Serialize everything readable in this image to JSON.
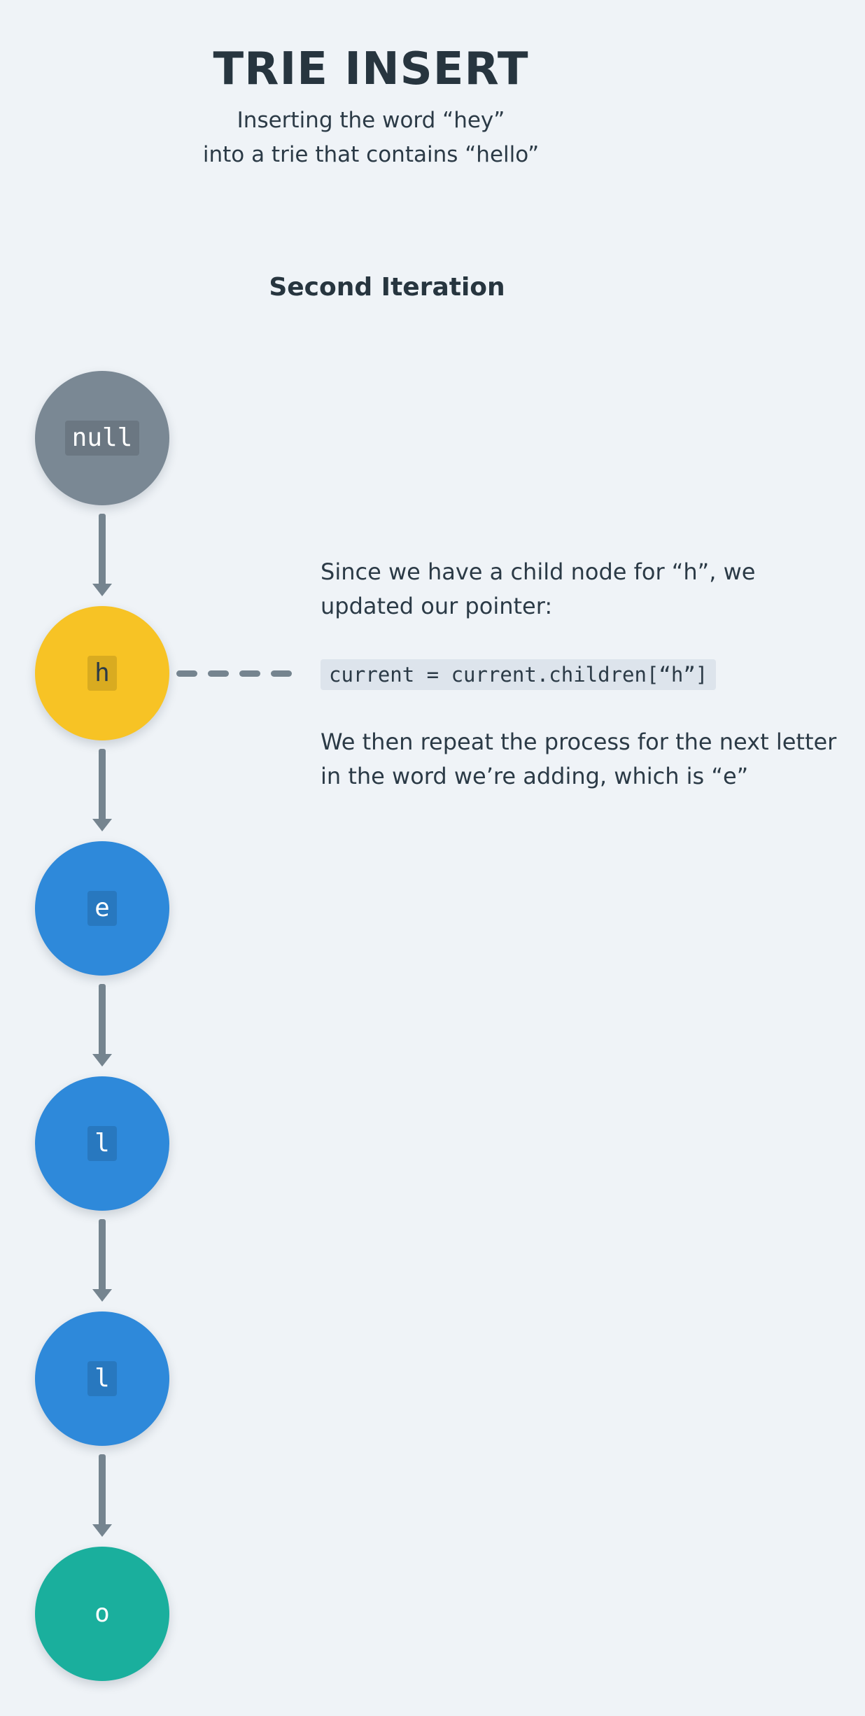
{
  "title": "TRIE INSERT",
  "subtitle": {
    "line1": "Inserting the word “hey”",
    "line2": "into a trie that contains “hello”"
  },
  "section_heading": "Second Iteration",
  "nodes": [
    {
      "label": "null",
      "color": "#7a8894"
    },
    {
      "label": "h",
      "color": "#f7c325"
    },
    {
      "label": "e",
      "color": "#2e89da"
    },
    {
      "label": "l",
      "color": "#2e89da"
    },
    {
      "label": "l",
      "color": "#2e89da"
    },
    {
      "label": "o",
      "color": "#1aaf9d"
    }
  ],
  "explanation": {
    "paragraph1": "Since we have a child node for “h”, we updated our pointer:",
    "code": "current = current.children[“h”]",
    "paragraph2": "We then repeat the process for the next letter in the word we’re adding, which is “e”"
  },
  "colors": {
    "background": "#eff3f7",
    "text": "#2b3a46",
    "arrow": "#75848f",
    "null_node": "#7a8894",
    "current_node": "#f7c325",
    "child_node": "#2e89da",
    "end_node": "#1aaf9d"
  }
}
